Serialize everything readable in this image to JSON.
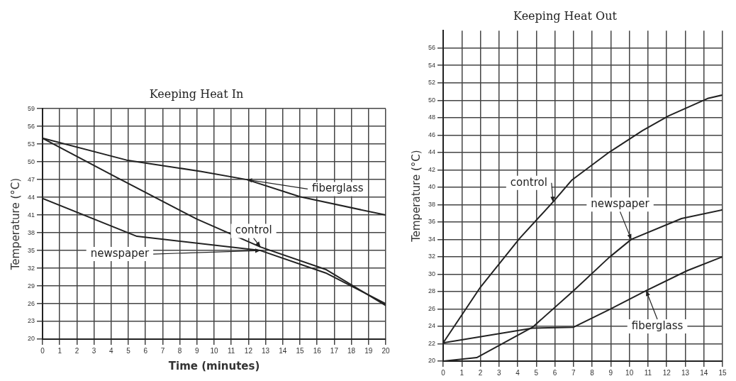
{
  "chart_data": [
    {
      "type": "line",
      "title": "Keeping Heat In",
      "xlabel": "Time (minutes)",
      "ylabel": "Temperature (°C)",
      "xlim": [
        0,
        20
      ],
      "xticks": [
        0,
        1,
        2,
        3,
        4,
        5,
        6,
        7,
        8,
        9,
        10,
        11,
        12,
        13,
        14,
        15,
        16,
        17,
        18,
        19,
        20
      ],
      "ylim": [
        20,
        59
      ],
      "yticks": [
        20,
        23,
        26,
        29,
        32,
        35,
        38,
        41,
        44,
        47,
        50,
        53,
        56,
        59
      ],
      "grid": true,
      "legend": false,
      "marker": "none",
      "line_style": "solid",
      "series": [
        {
          "name": "fiberglass",
          "color": "#222222",
          "x": [
            0,
            4.9,
            9.2,
            11.9,
            15,
            20
          ],
          "values": [
            54,
            50.3,
            48.4,
            47,
            44.1,
            41
          ]
        },
        {
          "name": "control",
          "color": "#222222",
          "x": [
            0,
            4.3,
            9,
            12.7,
            16.5,
            20
          ],
          "values": [
            54,
            47.4,
            40.3,
            35.6,
            31.8,
            25.7
          ]
        },
        {
          "name": "newspaper",
          "color": "#222222",
          "x": [
            0,
            5.5,
            12.7,
            16.5,
            20
          ],
          "values": [
            43.8,
            37.4,
            35,
            31.2,
            26
          ]
        }
      ]
    },
    {
      "type": "line",
      "title": "Keeping Heat Out",
      "ylabel": "Temperature (°C)",
      "xlim": [
        0,
        15
      ],
      "xticks": [
        0,
        1,
        2,
        3,
        4,
        5,
        6,
        7,
        8,
        9,
        10,
        11,
        12,
        13,
        14,
        15
      ],
      "ylim": [
        20,
        58
      ],
      "yticks": [
        20,
        22,
        24,
        26,
        28,
        30,
        32,
        34,
        36,
        38,
        40,
        42,
        44,
        46,
        48,
        50,
        52,
        54,
        56
      ],
      "grid": true,
      "legend": false,
      "marker": "none",
      "line_style": "solid",
      "series": [
        {
          "name": "control",
          "color": "#222222",
          "x": [
            0,
            2,
            4.1,
            5.9,
            6.9,
            8.9,
            10.7,
            12.1,
            14.2,
            15
          ],
          "values": [
            22.1,
            28.5,
            34.1,
            38.3,
            40.8,
            44,
            46.5,
            48.2,
            50.2,
            50.6
          ]
        },
        {
          "name": "newspaper",
          "color": "#222222",
          "x": [
            0,
            1.8,
            4.8,
            7,
            8.9,
            10.1,
            12.8,
            15
          ],
          "values": [
            20,
            20.4,
            23.9,
            28.1,
            31.9,
            34,
            36.4,
            37.4
          ]
        },
        {
          "name": "fiberglass",
          "color": "#222222",
          "x": [
            0,
            4.8,
            7,
            8.9,
            10.9,
            13.1,
            15
          ],
          "values": [
            22.1,
            23.8,
            23.9,
            25.9,
            28.1,
            30.4,
            32
          ]
        }
      ]
    }
  ]
}
